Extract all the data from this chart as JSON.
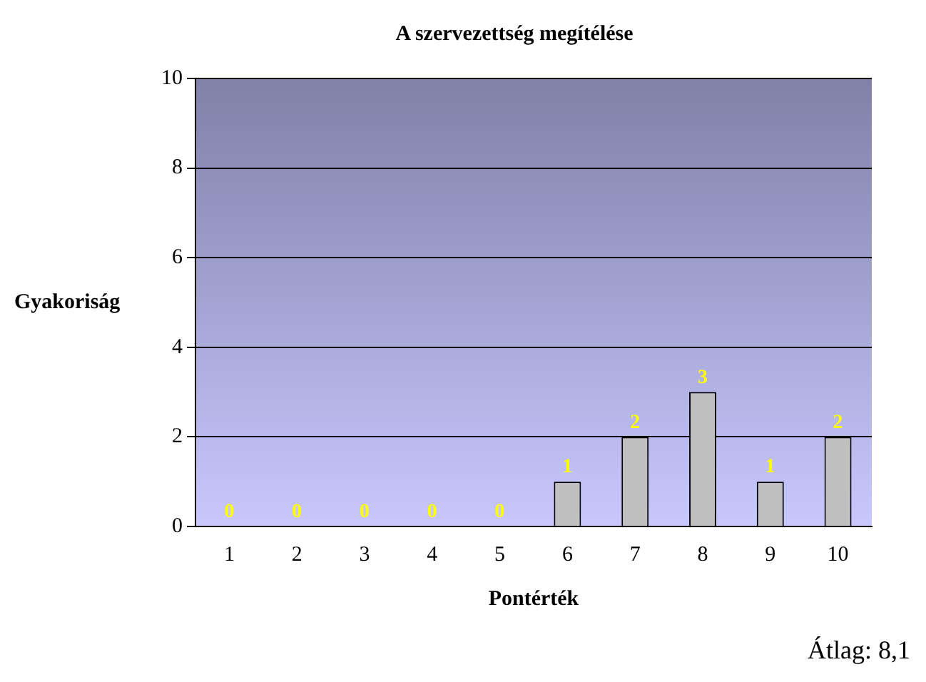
{
  "chart_data": {
    "type": "bar",
    "title": "A szervezettség megítélése",
    "xlabel": "Pontérték",
    "ylabel": "Gyakoriság",
    "categories": [
      "1",
      "2",
      "3",
      "4",
      "5",
      "6",
      "7",
      "8",
      "9",
      "10"
    ],
    "values": [
      0,
      0,
      0,
      0,
      0,
      1,
      2,
      3,
      1,
      2
    ],
    "color": "#c0c0c0",
    "ylim": [
      0,
      10
    ],
    "yticks": [
      0,
      2,
      4,
      6,
      8,
      10
    ],
    "grid": "y",
    "data_labels": true,
    "legend": false,
    "annotations": [
      "Átlag: 8,1"
    ]
  }
}
